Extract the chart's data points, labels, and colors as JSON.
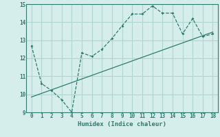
{
  "xlabel": "Humidex (Indice chaleur)",
  "ylabel": "",
  "x_line1": [
    0,
    1,
    2,
    3,
    4,
    5,
    6,
    7,
    8,
    9,
    10,
    11,
    12,
    13,
    14,
    15,
    16,
    17,
    18
  ],
  "y_line1": [
    12.7,
    10.6,
    10.2,
    9.7,
    9.0,
    12.3,
    12.1,
    12.5,
    13.1,
    13.8,
    14.45,
    14.45,
    14.9,
    14.5,
    14.5,
    13.35,
    14.2,
    13.2,
    13.35
  ],
  "x_line2": [
    0,
    1,
    2,
    3,
    4,
    5,
    6,
    7,
    8,
    9,
    10,
    11,
    12,
    13,
    14,
    15,
    16,
    17,
    18
  ],
  "y_line2": [
    9.85,
    10.05,
    10.25,
    10.45,
    10.65,
    10.85,
    11.05,
    11.25,
    11.45,
    11.65,
    11.85,
    12.05,
    12.25,
    12.45,
    12.65,
    12.85,
    13.05,
    13.25,
    13.45
  ],
  "line_color": "#2d7a6f",
  "bg_color": "#d6eeeb",
  "grid_color": "#b0d4cf",
  "ylim": [
    9,
    15
  ],
  "xlim": [
    -0.5,
    18.5
  ],
  "yticks": [
    9,
    10,
    11,
    12,
    13,
    14,
    15
  ],
  "xticks": [
    0,
    1,
    2,
    3,
    4,
    5,
    6,
    7,
    8,
    9,
    10,
    11,
    12,
    13,
    14,
    15,
    16,
    17,
    18
  ]
}
